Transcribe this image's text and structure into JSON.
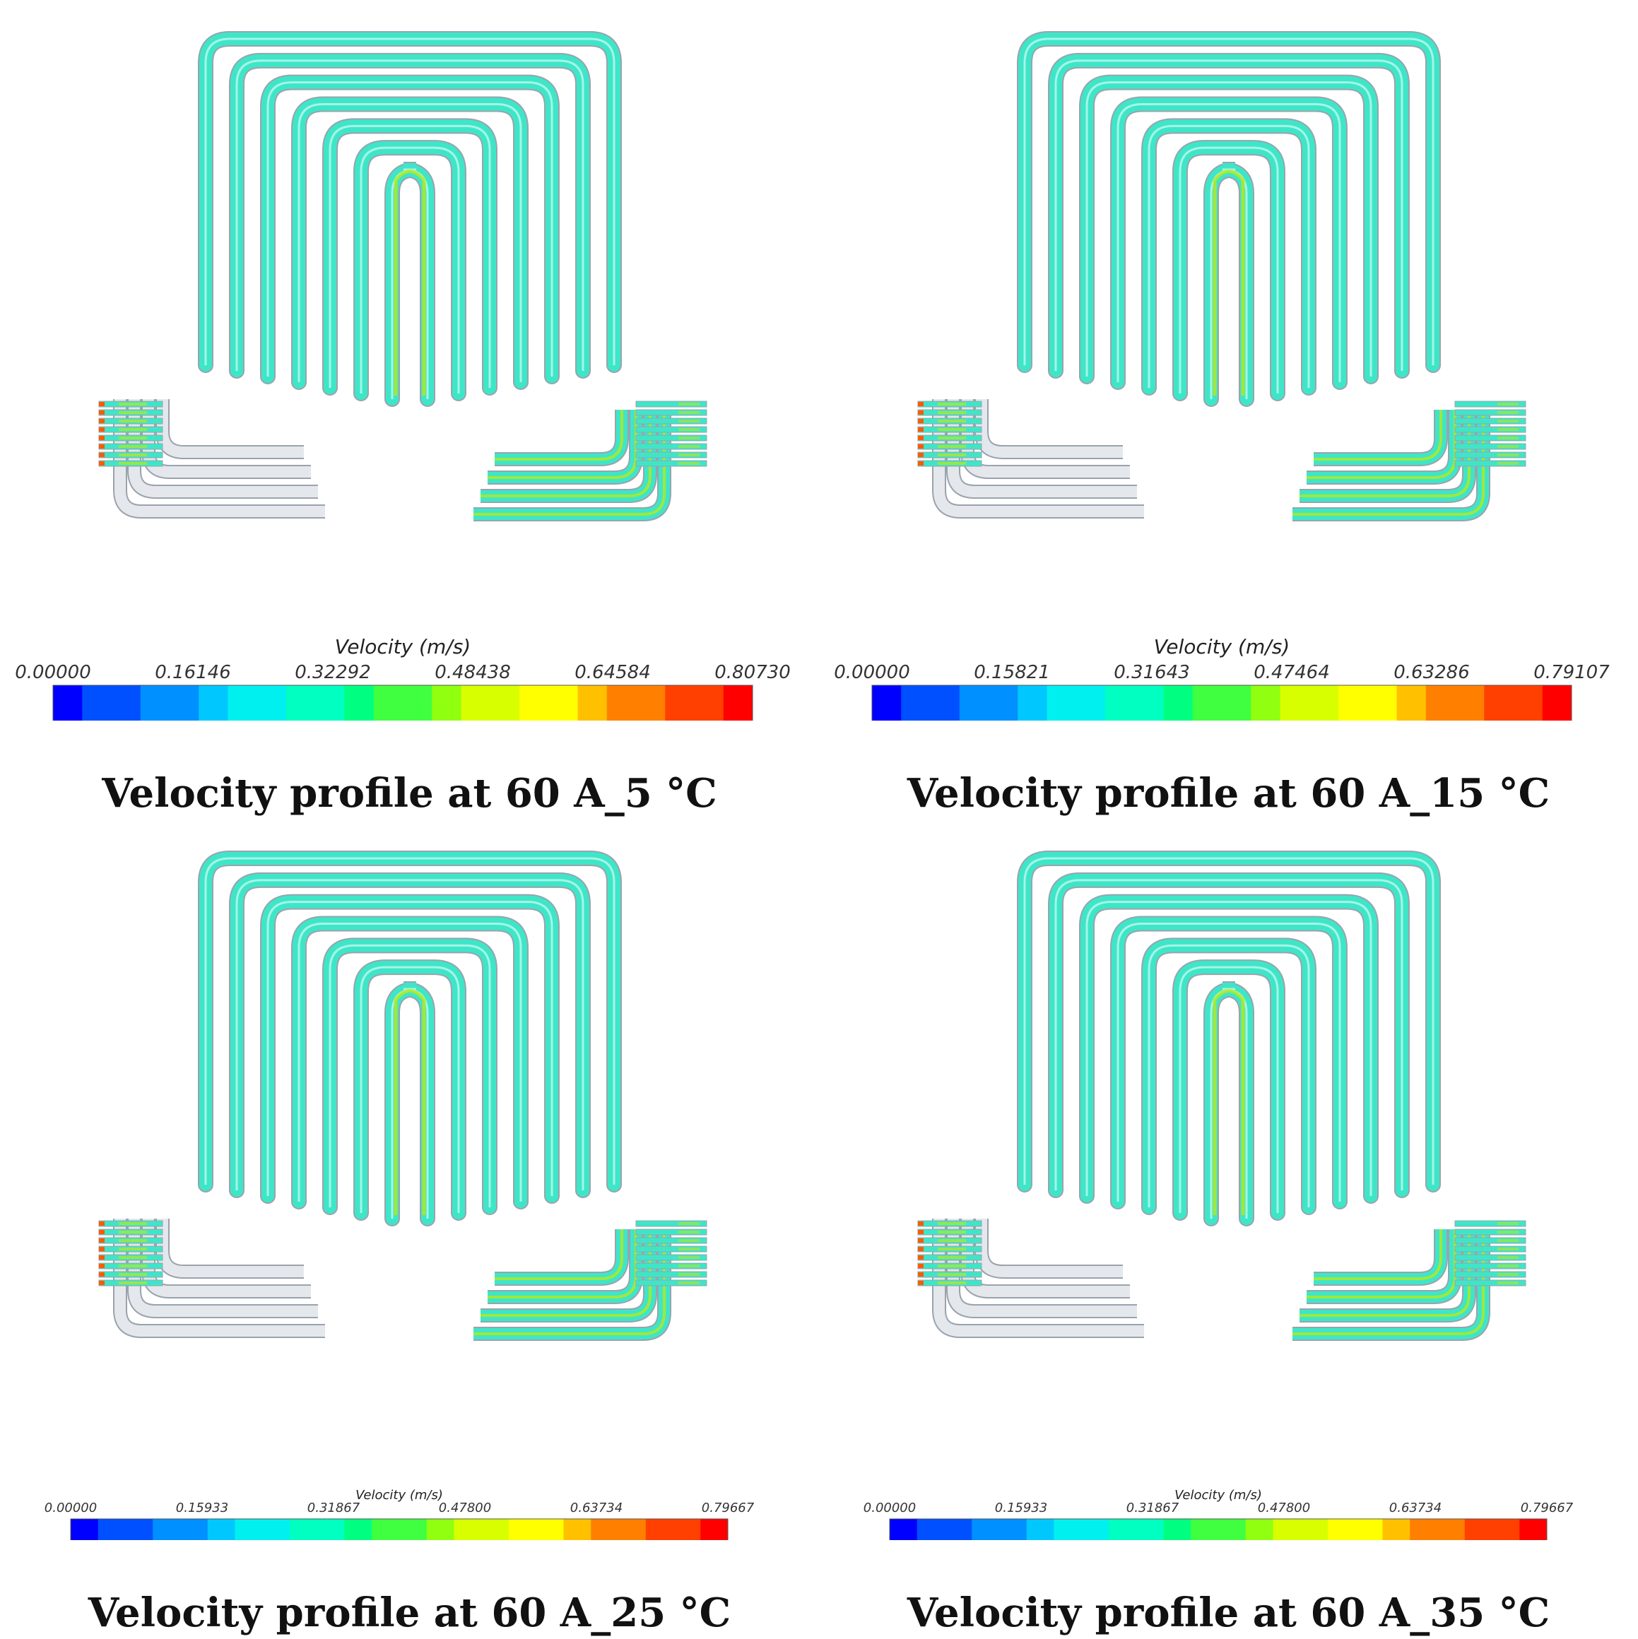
{
  "panels": [
    {
      "legend_title": "Velocity (m/s)",
      "ticks": [
        "0.00000",
        "0.16146",
        "0.32292",
        "0.48438",
        "0.64584",
        "0.80730"
      ],
      "caption": "Velocity profile at 60 A_5 °C"
    },
    {
      "legend_title": "Velocity (m/s)",
      "ticks": [
        "0.00000",
        "0.15821",
        "0.31643",
        "0.47464",
        "0.63286",
        "0.79107"
      ],
      "caption": "Velocity profile at 60 A_15 °C"
    },
    {
      "legend_title": "Velocity (m/s)",
      "ticks": [
        "0.00000",
        "0.15933",
        "0.31867",
        "0.47800",
        "0.63734",
        "0.79667"
      ],
      "caption": "Velocity profile at 60 A_25 °C"
    },
    {
      "legend_title": "Velocity (m/s)",
      "ticks": [
        "0.00000",
        "0.15933",
        "0.31867",
        "0.47800",
        "0.63734",
        "0.79667"
      ],
      "caption": "Velocity profile at 60 A_35 °C"
    }
  ],
  "colors": {
    "flow_main": "#3ee6c8",
    "flow_high": "#b8e81a",
    "channel_inactive": "#e4e8ec",
    "channel_outline": "#9aa3ad",
    "inlet_jet": "#ff5a00",
    "colormap": [
      "#0000ff",
      "#0050ff",
      "#0090ff",
      "#00c8ff",
      "#00f0f0",
      "#00ffc0",
      "#00ff80",
      "#40ff40",
      "#90ff10",
      "#d8ff00",
      "#ffff00",
      "#ffc000",
      "#ff8000",
      "#ff4000",
      "#ff0000"
    ]
  }
}
